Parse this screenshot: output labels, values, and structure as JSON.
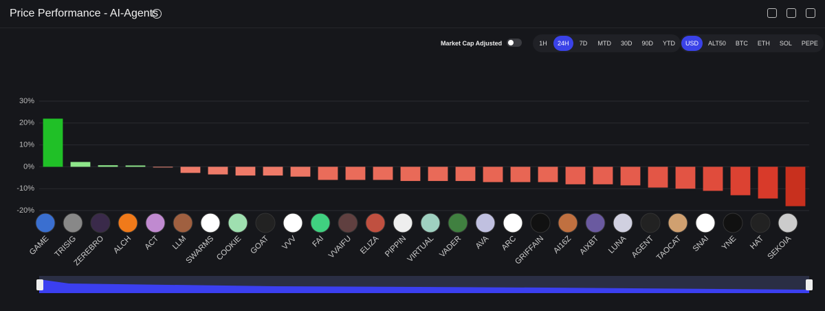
{
  "header": {
    "title": "Price Performance - AI-Agents"
  },
  "controls": {
    "market_cap_label": "Market Cap Adjusted",
    "ranges": [
      "1H",
      "24H",
      "7D",
      "MTD",
      "30D",
      "90D",
      "YTD"
    ],
    "active_range": 1,
    "currencies": [
      "USD",
      "ALT50",
      "BTC",
      "ETH",
      "SOL",
      "PEPE"
    ],
    "active_currency": 0
  },
  "chart_data": {
    "type": "bar",
    "categories": [
      "GAME",
      "TRISIG",
      "ZEREBRO",
      "ALCH",
      "ACT",
      "LLM",
      "SWARMS",
      "COOKIE",
      "GOAT",
      "VVV",
      "FAI",
      "VVAIFU",
      "ELIZA",
      "PIPPIN",
      "VIRTUAL",
      "VADER",
      "AVA",
      "ARC",
      "GRIFFAIN",
      "AI16Z",
      "AIXBT",
      "LUNA",
      "AGENT",
      "TAOCAT",
      "SNAI",
      "YNE",
      "HAT",
      "SEKOIA"
    ],
    "values": [
      22,
      2.2,
      0.7,
      0.6,
      -0.3,
      -2.8,
      -3.5,
      -4,
      -4,
      -4.5,
      -6,
      -6,
      -6,
      -6.5,
      -6.5,
      -6.5,
      -7,
      -7,
      -7,
      -8,
      -8,
      -8.5,
      -9.5,
      -10,
      -11,
      -13,
      -14.5,
      -18
    ],
    "colors": [
      "#20c027",
      "#8ee68a",
      "#8ee68a",
      "#8ee68a",
      "#f08a78",
      "#ee7b69",
      "#ee7b69",
      "#ee7a68",
      "#ee7a68",
      "#ec7664",
      "#ea6c5a",
      "#ea6c5a",
      "#ea6c5a",
      "#e96a58",
      "#e96a58",
      "#e96a58",
      "#e86654",
      "#e86654",
      "#e86654",
      "#e66050",
      "#e66050",
      "#e55c4c",
      "#e35646",
      "#e25444",
      "#e04c3c",
      "#dc4232",
      "#d83a2a",
      "#c8301e"
    ],
    "ylim": [
      -20,
      30
    ],
    "yticks": [
      {
        "value": -20,
        "label": "-20%"
      },
      {
        "value": -10,
        "label": "-10%"
      },
      {
        "value": 0,
        "label": "0%"
      },
      {
        "value": 10,
        "label": "10%"
      },
      {
        "value": 20,
        "label": "20%"
      },
      {
        "value": 30,
        "label": "30%"
      }
    ],
    "grid": true
  }
}
